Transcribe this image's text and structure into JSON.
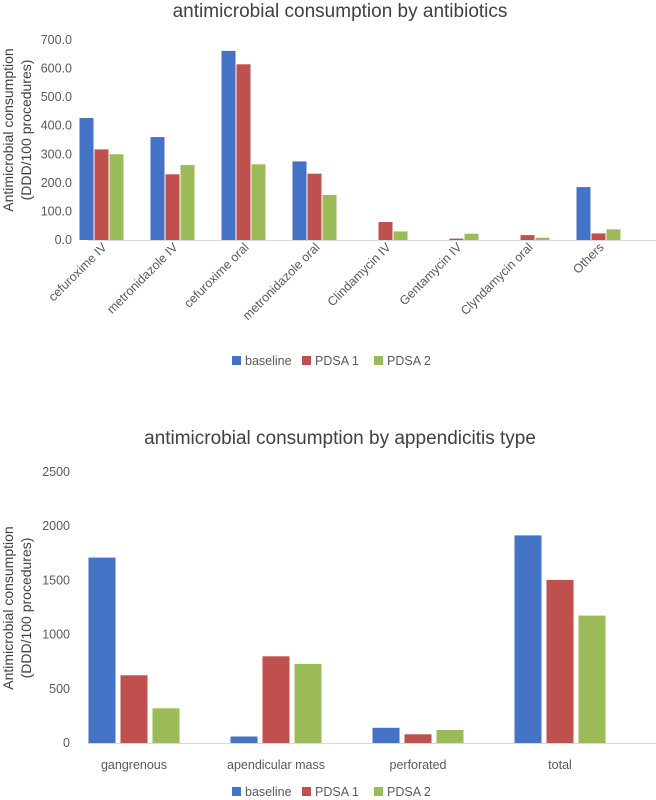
{
  "chart_data": [
    {
      "type": "bar",
      "title": "antimicrobial consumption by antibiotics",
      "xlabel": "",
      "ylabel_lines": [
        "Antimicrobial consumption",
        "(DDD/100 procedures)"
      ],
      "ylim": [
        0,
        700
      ],
      "yticks": [
        0,
        100,
        200,
        300,
        400,
        500,
        600,
        700
      ],
      "ytick_labels": [
        "0.0",
        "100.0",
        "200.0",
        "300.0",
        "400.0",
        "500.0",
        "600.0",
        "700.0"
      ],
      "categories": [
        "cefuroxime IV",
        "metronidazole IV",
        "cefuroxime oral",
        "metronidazole oral",
        "Clindamycin IV",
        "Gentamycin IV",
        "Clyndamycin oral",
        "Others"
      ],
      "series": [
        {
          "name": "baseline",
          "color": "#4472C4",
          "values": [
            427,
            360,
            662,
            275,
            0,
            0,
            0,
            185
          ]
        },
        {
          "name": "PDSA 1",
          "color": "#C0504D",
          "values": [
            317,
            230,
            615,
            232,
            63,
            5,
            17,
            23
          ]
        },
        {
          "name": "PDSA 2",
          "color": "#9BBB59",
          "values": [
            300,
            262,
            265,
            158,
            30,
            22,
            8,
            37
          ]
        }
      ],
      "legend_position": "bottom"
    },
    {
      "type": "bar",
      "title": "antimicrobial consumption by appendicitis type",
      "xlabel": "",
      "ylabel_lines": [
        "Antimicrobial consumption",
        "(DDD/100 procedures)"
      ],
      "ylim": [
        0,
        2500
      ],
      "yticks": [
        0,
        500,
        1000,
        1500,
        2000,
        2500
      ],
      "ytick_labels": [
        "0",
        "500",
        "1000",
        "1500",
        "2000",
        "2500"
      ],
      "categories": [
        "gangrenous",
        "apendicular mass",
        "perforated",
        "total"
      ],
      "series": [
        {
          "name": "baseline",
          "color": "#4472C4",
          "values": [
            1710,
            60,
            140,
            1915
          ]
        },
        {
          "name": "PDSA 1",
          "color": "#C0504D",
          "values": [
            625,
            800,
            80,
            1505
          ]
        },
        {
          "name": "PDSA 2",
          "color": "#9BBB59",
          "values": [
            320,
            730,
            120,
            1175
          ]
        }
      ],
      "legend_position": "bottom"
    }
  ]
}
